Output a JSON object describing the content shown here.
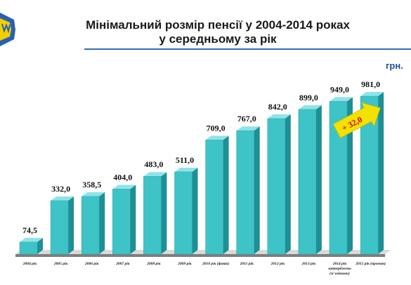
{
  "title_line1": "Мінімальний розмір пенсії у 2004-2014 роках",
  "title_line2": "у середньому за рік",
  "unit": "грн.",
  "logo": "ukraine-trident-logo",
  "colors": {
    "bar_front": "#3ec3c7",
    "bar_side": "#1e8f94",
    "bar_top": "#8fe3e6",
    "floor": "#7d7d7d",
    "title_rule": "#2e6fb5",
    "unit": "#1f4e96",
    "arrow": "#f3e200"
  },
  "chart_data": {
    "type": "bar",
    "categories": [
      "2004 рік",
      "2005 рік",
      "2006 рік",
      "2007 рік",
      "2008 рік",
      "2009 рік",
      "2010 рік (факт)",
      "2011 рік",
      "2012 рік",
      "2013 рік",
      "2014 рік затверджено (зі змінами)",
      "2015 рік (проект)"
    ],
    "values": [
      74.5,
      332.0,
      358.5,
      404.0,
      483.0,
      511.0,
      709.0,
      767.0,
      842.0,
      899.0,
      949.0,
      981.0
    ],
    "value_labels": [
      "74,5",
      "332,0",
      "358,5",
      "404,0",
      "483,0",
      "511,0",
      "709,0",
      "767,0",
      "842,0",
      "899,0",
      "949,0",
      "981,0"
    ],
    "ylabel": "грн.",
    "ylim": [
      0,
      1000
    ],
    "grid": false,
    "annotation": "+ 32,0"
  }
}
